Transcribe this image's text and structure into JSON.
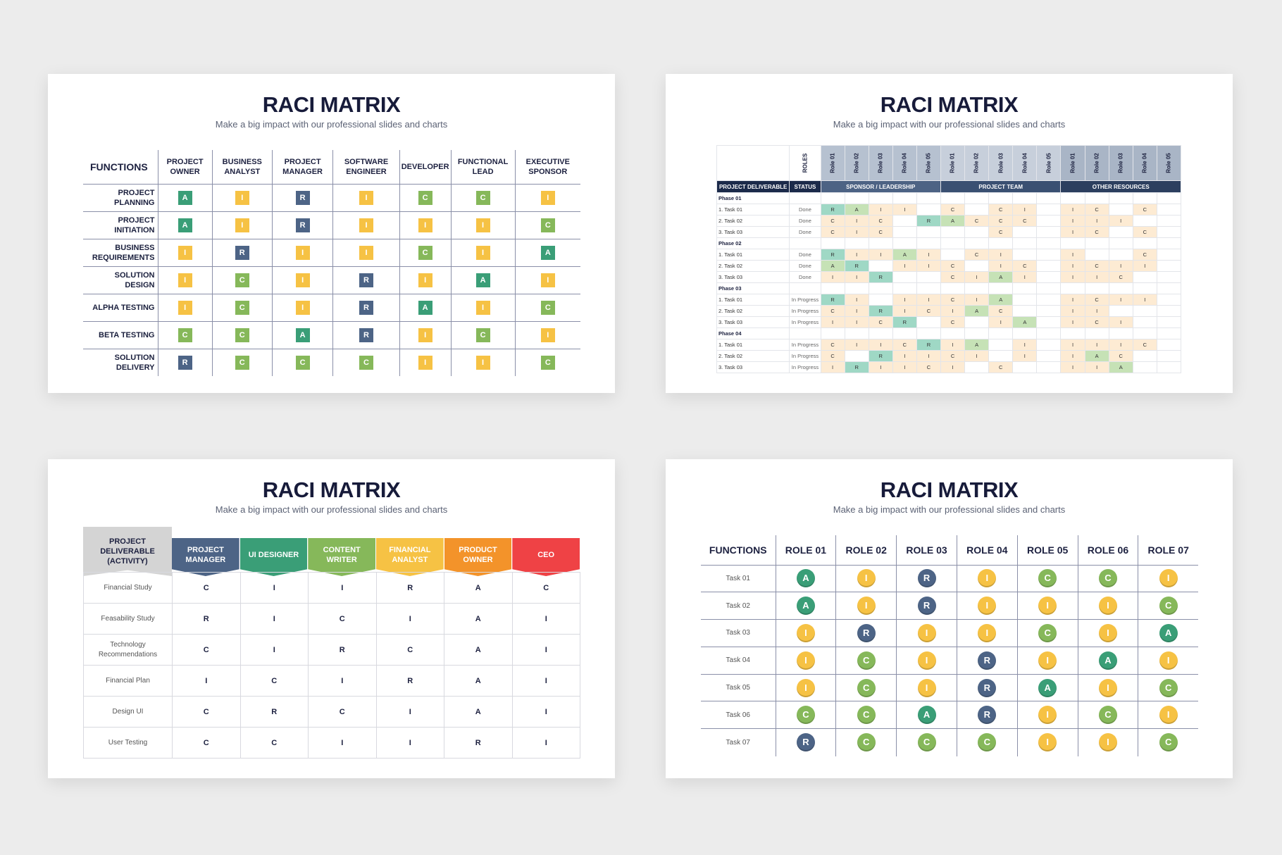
{
  "common": {
    "title": "RACI MATRIX",
    "subtitle": "Make a big impact with our professional slides and charts"
  },
  "colors": {
    "A": "#3a9e77",
    "R": "#4d6486",
    "C": "#86b85a",
    "I": "#f6c244",
    "ceo": "#ef4245",
    "product_owner": "#f3932a",
    "financial_analyst": "#f6c244",
    "content_writer": "#86b85a",
    "ui_designer": "#3a9e77",
    "project_manager": "#4d6486"
  },
  "slide1": {
    "corner": "FUNCTIONS",
    "roles": [
      "PROJECT OWNER",
      "BUSINESS ANALYST",
      "PROJECT MANAGER",
      "SOFTWARE ENGINEER",
      "DEVELOPER",
      "FUNCTIONAL LEAD",
      "EXECUTIVE SPONSOR"
    ],
    "rows": [
      {
        "label": "PROJECT PLANNING",
        "cells": [
          "A",
          "I",
          "R",
          "I",
          "C",
          "C",
          "I"
        ]
      },
      {
        "label": "PROJECT INITIATION",
        "cells": [
          "A",
          "I",
          "R",
          "I",
          "I",
          "I",
          "C"
        ]
      },
      {
        "label": "BUSINESS REQUIREMENTS",
        "cells": [
          "I",
          "R",
          "I",
          "I",
          "C",
          "I",
          "A"
        ]
      },
      {
        "label": "SOLUTION DESIGN",
        "cells": [
          "I",
          "C",
          "I",
          "R",
          "I",
          "A",
          "I"
        ]
      },
      {
        "label": "ALPHA TESTING",
        "cells": [
          "I",
          "C",
          "I",
          "R",
          "A",
          "I",
          "C"
        ]
      },
      {
        "label": "BETA TESTING",
        "cells": [
          "C",
          "C",
          "A",
          "R",
          "I",
          "C",
          "I"
        ]
      },
      {
        "label": "SOLUTION DELIVERY",
        "cells": [
          "R",
          "C",
          "C",
          "C",
          "I",
          "I",
          "C"
        ]
      }
    ]
  },
  "slide2": {
    "roles_label": "ROLES",
    "role_cols": [
      "Role 01",
      "Role 02",
      "Role 03",
      "Role 04",
      "Role 05",
      "Role 01",
      "Role 02",
      "Role 03",
      "Role 04",
      "Role 05",
      "Role 01",
      "Role 02",
      "Role 03",
      "Role 04",
      "Role 05"
    ],
    "header": {
      "deliverable": "PROJECT DELIVERABLE",
      "status": "STATUS",
      "group1": "SPONSOR / LEADERSHIP",
      "group2": "PROJECT TEAM",
      "group3": "OTHER RESOURCES"
    },
    "phases": [
      {
        "name": "Phase 01",
        "tasks": [
          {
            "name": "1. Task 01",
            "status": "Done",
            "cells": [
              "R",
              "A",
              "I",
              "I",
              "",
              "C",
              "",
              "C",
              "I",
              "",
              "I",
              "C",
              "",
              "C",
              ""
            ]
          },
          {
            "name": "2. Task 02",
            "status": "Done",
            "cells": [
              "C",
              "I",
              "C",
              "",
              "R",
              "A",
              "C",
              "C",
              "C",
              "",
              "I",
              "I",
              "I",
              "",
              ""
            ]
          },
          {
            "name": "3. Task 03",
            "status": "Done",
            "cells": [
              "C",
              "I",
              "C",
              "",
              "",
              "",
              "",
              "C",
              "",
              "",
              "I",
              "C",
              "",
              "C",
              ""
            ]
          }
        ]
      },
      {
        "name": "Phase 02",
        "tasks": [
          {
            "name": "1. Task 01",
            "status": "Done",
            "cells": [
              "R",
              "I",
              "I",
              "A",
              "I",
              "",
              "C",
              "I",
              "",
              "",
              "I",
              "",
              "",
              "C",
              ""
            ]
          },
          {
            "name": "2. Task 02",
            "status": "Done",
            "cells": [
              "A",
              "R",
              "",
              "I",
              "I",
              "C",
              "",
              "I",
              "C",
              "",
              "I",
              "C",
              "I",
              "I",
              ""
            ]
          },
          {
            "name": "3. Task 03",
            "status": "Done",
            "cells": [
              "I",
              "I",
              "R",
              "",
              "",
              "C",
              "I",
              "A",
              "I",
              "",
              "I",
              "I",
              "C",
              "",
              ""
            ]
          }
        ]
      },
      {
        "name": "Phase 03",
        "tasks": [
          {
            "name": "1. Task 01",
            "status": "In Progress",
            "cells": [
              "R",
              "I",
              "",
              "I",
              "I",
              "C",
              "I",
              "A",
              "",
              "",
              "I",
              "C",
              "I",
              "I",
              ""
            ]
          },
          {
            "name": "2. Task 02",
            "status": "In Progress",
            "cells": [
              "C",
              "I",
              "R",
              "I",
              "C",
              "I",
              "A",
              "C",
              "",
              "",
              "I",
              "I",
              "",
              "",
              ""
            ]
          },
          {
            "name": "3. Task 03",
            "status": "In Progress",
            "cells": [
              "I",
              "I",
              "C",
              "R",
              "",
              "C",
              "",
              "I",
              "A",
              "",
              "I",
              "C",
              "I",
              "",
              ""
            ]
          }
        ]
      },
      {
        "name": "Phase 04",
        "tasks": [
          {
            "name": "1. Task 01",
            "status": "In Progress",
            "cells": [
              "C",
              "I",
              "I",
              "C",
              "R",
              "I",
              "A",
              "",
              "I",
              "",
              "I",
              "I",
              "I",
              "C",
              ""
            ]
          },
          {
            "name": "2. Task 02",
            "status": "In Progress",
            "cells": [
              "C",
              "",
              "R",
              "I",
              "I",
              "C",
              "I",
              "",
              "I",
              "",
              "I",
              "A",
              "C",
              "",
              ""
            ]
          },
          {
            "name": "3. Task 03",
            "status": "In Progress",
            "cells": [
              "I",
              "R",
              "I",
              "I",
              "C",
              "I",
              "",
              "C",
              "",
              "",
              "I",
              "I",
              "A",
              "",
              ""
            ]
          }
        ]
      }
    ]
  },
  "slide3": {
    "corner": "PROJECT DELIVERABLE (ACTIVITY)",
    "roles": [
      {
        "name": "PROJECT MANAGER",
        "color": "#4d6486"
      },
      {
        "name": "UI DESIGNER",
        "color": "#3a9e77"
      },
      {
        "name": "CONTENT WRITER",
        "color": "#86b85a"
      },
      {
        "name": "FINANCIAL ANALYST",
        "color": "#f6c244"
      },
      {
        "name": "PRODUCT OWNER",
        "color": "#f3932a"
      },
      {
        "name": "CEO",
        "color": "#ef4245"
      }
    ],
    "rows": [
      {
        "label": "Financial Study",
        "cells": [
          "C",
          "I",
          "I",
          "R",
          "A",
          "C"
        ]
      },
      {
        "label": "Feasability Study",
        "cells": [
          "R",
          "I",
          "C",
          "I",
          "A",
          "I"
        ]
      },
      {
        "label": "Technology Recommendations",
        "cells": [
          "C",
          "I",
          "R",
          "C",
          "A",
          "I"
        ]
      },
      {
        "label": "Financial Plan",
        "cells": [
          "I",
          "C",
          "I",
          "R",
          "A",
          "I"
        ]
      },
      {
        "label": "Design UI",
        "cells": [
          "C",
          "R",
          "C",
          "I",
          "A",
          "I"
        ]
      },
      {
        "label": "User Testing",
        "cells": [
          "C",
          "C",
          "I",
          "I",
          "R",
          "I"
        ]
      }
    ]
  },
  "slide4": {
    "corner": "FUNCTIONS",
    "roles": [
      "ROLE 01",
      "ROLE 02",
      "ROLE 03",
      "ROLE 04",
      "ROLE 05",
      "ROLE 06",
      "ROLE 07"
    ],
    "rows": [
      {
        "label": "Task 01",
        "cells": [
          "A",
          "I",
          "R",
          "I",
          "C",
          "C",
          "I"
        ]
      },
      {
        "label": "Task 02",
        "cells": [
          "A",
          "I",
          "R",
          "I",
          "I",
          "I",
          "C"
        ]
      },
      {
        "label": "Task 03",
        "cells": [
          "I",
          "R",
          "I",
          "I",
          "C",
          "I",
          "A"
        ]
      },
      {
        "label": "Task 04",
        "cells": [
          "I",
          "C",
          "I",
          "R",
          "I",
          "A",
          "I"
        ]
      },
      {
        "label": "Task 05",
        "cells": [
          "I",
          "C",
          "I",
          "R",
          "A",
          "I",
          "C"
        ]
      },
      {
        "label": "Task 06",
        "cells": [
          "C",
          "C",
          "A",
          "R",
          "I",
          "C",
          "I"
        ]
      },
      {
        "label": "Task 07",
        "cells": [
          "R",
          "C",
          "C",
          "C",
          "I",
          "I",
          "C"
        ]
      }
    ]
  }
}
